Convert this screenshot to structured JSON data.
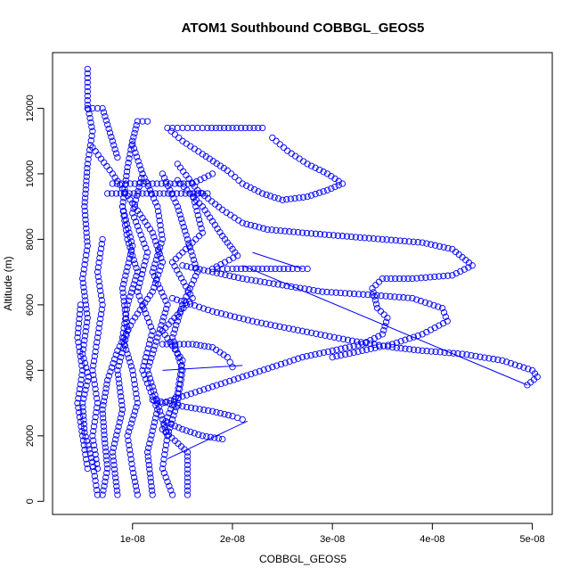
{
  "chart_data": {
    "type": "scatter",
    "title": "ATOM1 Southbound COBBGL_GEOS5",
    "xlabel": "COBBGL_GEOS5",
    "ylabel": "Altitude (m)",
    "xlim": [
      2e-09,
      5.2e-08
    ],
    "ylim": [
      -400,
      13700
    ],
    "x_ticks": [
      1e-08,
      2e-08,
      3e-08,
      4e-08,
      5e-08
    ],
    "x_tick_labels": [
      "1e-08",
      "2e-08",
      "3e-08",
      "4e-08",
      "5e-08"
    ],
    "y_ticks": [
      0,
      2000,
      4000,
      6000,
      8000,
      10000,
      12000
    ],
    "y_tick_labels": [
      "0",
      "2000",
      "4000",
      "6000",
      "8000",
      "10000",
      "12000"
    ],
    "color": "#0000ff",
    "marker": "open-circle",
    "grid": false,
    "legend": "none",
    "series": [
      {
        "values": [
          [
            1.55e-08,
            200
          ],
          [
            1.55e-08,
            1500
          ],
          [
            1.3e-08,
            2200
          ],
          [
            1.45e-08,
            3300
          ],
          [
            1.5e-08,
            4300
          ],
          [
            1.3e-08,
            5200
          ],
          [
            1.6e-08,
            6200
          ],
          [
            1.4e-08,
            7300
          ],
          [
            1.7e-08,
            8200
          ],
          [
            1.6e-08,
            9400
          ],
          [
            1.75e-08,
            9400
          ]
        ]
      },
      {
        "values": [
          [
            6.5e-09,
            200
          ],
          [
            6e-09,
            1200
          ],
          [
            5.2e-09,
            2100
          ],
          [
            5e-09,
            3000
          ],
          [
            5.6e-09,
            3800
          ],
          [
            5e-09,
            4500
          ],
          [
            5.5e-09,
            5600
          ],
          [
            5e-09,
            6800
          ],
          [
            5.5e-09,
            7800
          ],
          [
            5.2e-09,
            9000
          ],
          [
            5.5e-09,
            10300
          ],
          [
            6e-09,
            11300
          ],
          [
            5.5e-09,
            12100
          ],
          [
            5.5e-09,
            13200
          ]
        ]
      },
      {
        "values": [
          [
            8.5e-09,
            200
          ],
          [
            8e-09,
            1500
          ],
          [
            9e-09,
            2800
          ],
          [
            8.5e-09,
            4000
          ],
          [
            9.5e-09,
            5200
          ],
          [
            9e-09,
            6500
          ],
          [
            1e-08,
            7800
          ],
          [
            9e-09,
            9000
          ],
          [
            9.5e-09,
            10200
          ],
          [
            1e-08,
            11000
          ],
          [
            1.05e-08,
            11600
          ],
          [
            1.15e-08,
            11600
          ]
        ]
      },
      {
        "values": [
          [
            1.2e-08,
            200
          ],
          [
            1.15e-08,
            1500
          ],
          [
            1.25e-08,
            2800
          ],
          [
            1.1e-08,
            4000
          ],
          [
            1.2e-08,
            5200
          ],
          [
            1.05e-08,
            6400
          ],
          [
            1.15e-08,
            7600
          ],
          [
            1e-08,
            8800
          ],
          [
            1.1e-08,
            10000
          ]
        ]
      },
      {
        "values": [
          [
            1.4e-08,
            11400
          ],
          [
            1.55e-08,
            11400
          ],
          [
            1.75e-08,
            11400
          ],
          [
            2e-08,
            11400
          ],
          [
            2.3e-08,
            11400
          ]
        ]
      },
      {
        "values": [
          [
            1.35e-08,
            11400
          ],
          [
            1.5e-08,
            11000
          ],
          [
            1.7e-08,
            10600
          ],
          [
            1.95e-08,
            10100
          ],
          [
            2.1e-08,
            9700
          ],
          [
            2.3e-08,
            9400
          ],
          [
            2.5e-08,
            9200
          ],
          [
            2.75e-08,
            9300
          ],
          [
            2.95e-08,
            9500
          ],
          [
            3.1e-08,
            9700
          ],
          [
            2.95e-08,
            10000
          ],
          [
            2.75e-08,
            10300
          ],
          [
            2.55e-08,
            10700
          ],
          [
            2.4e-08,
            11100
          ]
        ]
      },
      {
        "values": [
          [
            1.45e-08,
            10300
          ],
          [
            1.65e-08,
            9500
          ],
          [
            1.9e-08,
            8900
          ],
          [
            2.1e-08,
            8500
          ],
          [
            2.35e-08,
            8300
          ],
          [
            2.7e-08,
            8200
          ],
          [
            3.1e-08,
            8100
          ],
          [
            3.5e-08,
            8000
          ],
          [
            3.9e-08,
            7900
          ],
          [
            4.2e-08,
            7700
          ],
          [
            4.4e-08,
            7200
          ],
          [
            4.2e-08,
            6900
          ],
          [
            3.8e-08,
            6800
          ],
          [
            3.5e-08,
            6800
          ],
          [
            3.4e-08,
            6500
          ],
          [
            3.45e-08,
            5900
          ],
          [
            3.55e-08,
            5600
          ],
          [
            3.5e-08,
            5100
          ],
          [
            3.3e-08,
            4800
          ],
          [
            3e-08,
            4600
          ],
          [
            2.7e-08,
            4400
          ],
          [
            2.4e-08,
            4100
          ],
          [
            2.1e-08,
            3800
          ],
          [
            1.8e-08,
            3500
          ],
          [
            1.5e-08,
            3200
          ],
          [
            1.3e-08,
            3000
          ]
        ]
      },
      {
        "values": [
          [
            1.45e-08,
            9800
          ],
          [
            1.7e-08,
            9000
          ],
          [
            1.9e-08,
            8100
          ],
          [
            2.05e-08,
            7500
          ],
          [
            1.8e-08,
            7100
          ],
          [
            2e-08,
            7100
          ],
          [
            2.3e-08,
            7100
          ],
          [
            2.6e-08,
            7100
          ],
          [
            2.75e-08,
            7100
          ]
        ]
      },
      {
        "values": [
          [
            1.5e-08,
            7200
          ],
          [
            1.8e-08,
            7000
          ],
          [
            2.1e-08,
            6800
          ],
          [
            2.5e-08,
            6600
          ],
          [
            2.9e-08,
            6400
          ],
          [
            3.4e-08,
            6300
          ],
          [
            3.8e-08,
            6200
          ],
          [
            4.1e-08,
            5900
          ],
          [
            4.15e-08,
            5500
          ],
          [
            3.9e-08,
            5100
          ],
          [
            3.6e-08,
            4800
          ],
          [
            3.3e-08,
            4600
          ],
          [
            3e-08,
            4400
          ]
        ]
      },
      {
        "values": [
          [
            1.4e-08,
            6200
          ],
          [
            1.8e-08,
            5800
          ],
          [
            2.2e-08,
            5500
          ],
          [
            2.7e-08,
            5200
          ],
          [
            3.2e-08,
            4900
          ],
          [
            3.6e-08,
            4700
          ],
          [
            3.9e-08,
            4600
          ],
          [
            4.3e-08,
            4500
          ],
          [
            4.7e-08,
            4300
          ],
          [
            5e-08,
            4000
          ],
          [
            5.05e-08,
            3800
          ],
          [
            4.95e-08,
            3550
          ]
        ]
      },
      {
        "values": [
          [
            1.3e-08,
            4800
          ],
          [
            1.6e-08,
            4800
          ],
          [
            1.8e-08,
            4700
          ],
          [
            1.95e-08,
            4400
          ],
          [
            2e-08,
            4100
          ]
        ]
      },
      {
        "values": [
          [
            1.2e-08,
            3100
          ],
          [
            1.5e-08,
            2900
          ],
          [
            1.8e-08,
            2750
          ],
          [
            2e-08,
            2600
          ],
          [
            2.1e-08,
            2500
          ]
        ]
      },
      {
        "values": [
          [
            1.35e-08,
            2400
          ],
          [
            1.5e-08,
            2200
          ],
          [
            1.7e-08,
            2000
          ],
          [
            1.9e-08,
            1900
          ]
        ]
      },
      {
        "values": [
          [
            1.6e-08,
            9700
          ],
          [
            1.8e-08,
            10000
          ]
        ]
      },
      {
        "values": [
          [
            8e-09,
            9700
          ],
          [
            1.2e-08,
            9700
          ],
          [
            1.6e-08,
            9700
          ]
        ]
      },
      {
        "values": [
          [
            7.5e-09,
            9400
          ],
          [
            1.1e-08,
            9400
          ],
          [
            1.4e-08,
            9400
          ],
          [
            1.7e-08,
            9400
          ]
        ]
      },
      {
        "values": [
          [
            5.5e-09,
            12000
          ],
          [
            7e-09,
            12000
          ],
          [
            7.5e-09,
            11500
          ],
          [
            8e-09,
            11000
          ],
          [
            8.5e-09,
            10500
          ]
        ]
      },
      {
        "values": [
          [
            6e-09,
            10800
          ],
          [
            8e-09,
            10000
          ],
          [
            1e-08,
            9100
          ],
          [
            1.2e-08,
            8200
          ],
          [
            1.3e-08,
            7300
          ],
          [
            1.2e-08,
            6400
          ],
          [
            1e-08,
            5500
          ],
          [
            8.5e-09,
            4600
          ],
          [
            7.5e-09,
            3700
          ],
          [
            7e-09,
            2800
          ],
          [
            7.2e-09,
            1900
          ],
          [
            7.5e-09,
            1000
          ],
          [
            7e-09,
            200
          ]
        ]
      },
      {
        "values": [
          [
            1e-08,
            10900
          ],
          [
            1.1e-08,
            10000
          ],
          [
            1.25e-08,
            9000
          ],
          [
            1.3e-08,
            8000
          ],
          [
            1.2e-08,
            7000
          ],
          [
            1.35e-08,
            6000
          ],
          [
            1.25e-08,
            5000
          ],
          [
            1.15e-08,
            4000
          ],
          [
            1.25e-08,
            3000
          ],
          [
            1.35e-08,
            2000
          ],
          [
            1.3e-08,
            1000
          ],
          [
            1.4e-08,
            200
          ]
        ]
      },
      {
        "values": [
          [
            9e-09,
            9000
          ],
          [
            9.5e-09,
            8000
          ],
          [
            1.05e-08,
            7000
          ],
          [
            9.5e-09,
            6000
          ],
          [
            9e-09,
            5000
          ],
          [
            1e-08,
            4000
          ],
          [
            1.05e-08,
            3000
          ],
          [
            9.5e-09,
            2000
          ],
          [
            1e-08,
            1000
          ],
          [
            1.05e-08,
            200
          ]
        ]
      },
      {
        "values": [
          [
            1.3e-08,
            10000
          ],
          [
            1.45e-08,
            9000
          ],
          [
            1.55e-08,
            8000
          ],
          [
            1.65e-08,
            7000
          ],
          [
            1.5e-08,
            6000
          ],
          [
            1.4e-08,
            5000
          ],
          [
            1.5e-08,
            4000
          ],
          [
            1.45e-08,
            3000
          ],
          [
            1.35e-08,
            2000
          ]
        ]
      },
      {
        "values": [
          [
            7e-09,
            8000
          ],
          [
            6.5e-09,
            7000
          ],
          [
            7e-09,
            6000
          ],
          [
            6.5e-09,
            5000
          ],
          [
            6e-09,
            4000
          ],
          [
            6.5e-09,
            3000
          ],
          [
            6e-09,
            2000
          ],
          [
            6.5e-09,
            1000
          ]
        ]
      },
      {
        "values": [
          [
            4.8e-09,
            6000
          ],
          [
            4.5e-09,
            5000
          ],
          [
            5e-09,
            4000
          ],
          [
            4.5e-09,
            3000
          ],
          [
            5e-09,
            2000
          ],
          [
            5.5e-09,
            1000
          ]
        ]
      }
    ],
    "connectors": [
      [
        [
          1.3e-08,
          4000
        ],
        [
          2.1e-08,
          4150
        ]
      ],
      [
        [
          1.35e-08,
          1300
        ],
        [
          2.15e-08,
          2450
        ]
      ],
      [
        [
          2.1e-08,
          7200
        ],
        [
          4.95e-08,
          3550
        ]
      ],
      [
        [
          2.2e-08,
          7600
        ],
        [
          2.7e-08,
          7100
        ]
      ]
    ]
  }
}
